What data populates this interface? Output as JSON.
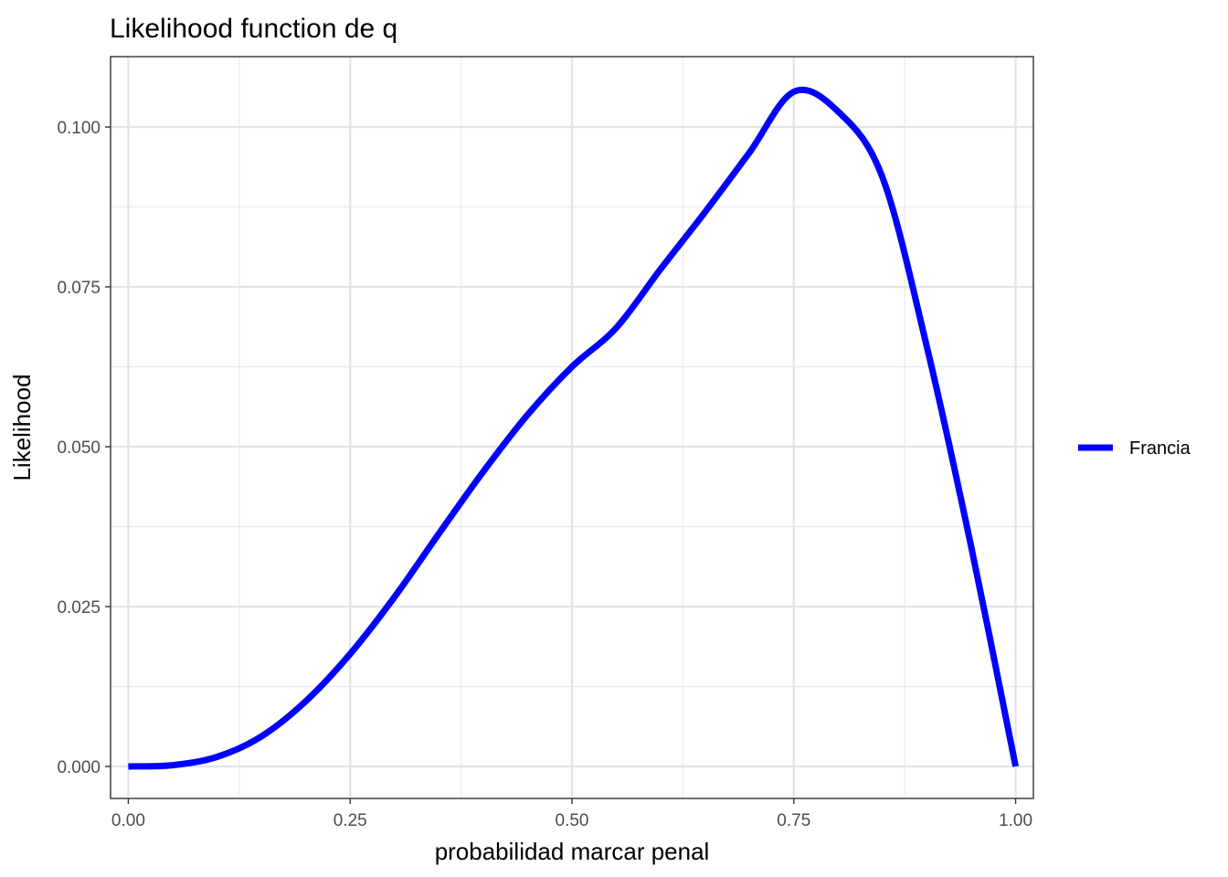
{
  "chart_data": {
    "type": "line",
    "title": "Likelihood function de q",
    "xlabel": "probabilidad marcar penal",
    "ylabel": "Likelihood",
    "xlim": [
      -0.02,
      1.02
    ],
    "ylim": [
      -0.005,
      0.111
    ],
    "x_ticks": [
      0.0,
      0.25,
      0.5,
      0.75,
      1.0
    ],
    "x_tick_labels": [
      "0.00",
      "0.25",
      "0.50",
      "0.75",
      "1.00"
    ],
    "y_ticks": [
      0.0,
      0.025,
      0.05,
      0.075,
      0.1
    ],
    "y_tick_labels": [
      "0.000",
      "0.025",
      "0.050",
      "0.075",
      "0.100"
    ],
    "grid": true,
    "legend_position": "right",
    "series": [
      {
        "name": "Francia",
        "color": "#0000ff",
        "x": [
          0.0,
          0.05,
          0.1,
          0.15,
          0.2,
          0.25,
          0.3,
          0.35,
          0.4,
          0.45,
          0.5,
          0.55,
          0.6,
          0.65,
          0.7,
          0.75,
          0.8,
          0.85,
          0.9,
          0.95,
          1.0
        ],
        "y": [
          0.0,
          0.0002,
          0.0015,
          0.0047,
          0.0102,
          0.0176,
          0.0265,
          0.0364,
          0.0461,
          0.055,
          0.0625,
          0.0686,
          0.0778,
          0.0867,
          0.096,
          0.1055,
          0.1024,
          0.0921,
          0.0656,
          0.0343,
          0.0
        ]
      }
    ]
  }
}
